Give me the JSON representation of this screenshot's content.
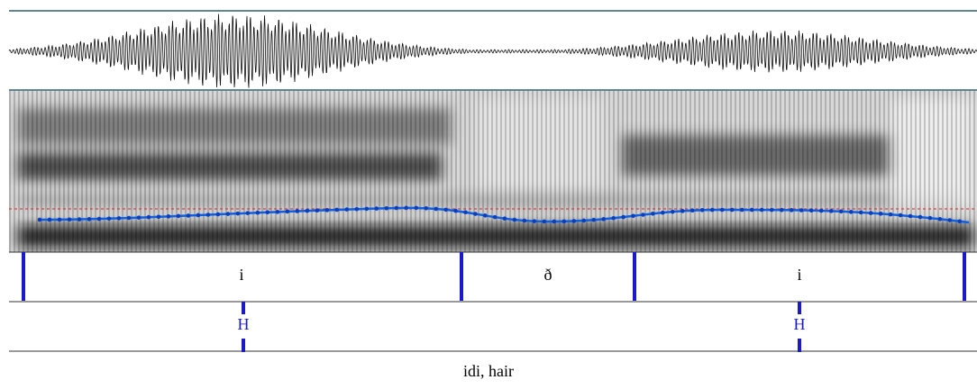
{
  "tiers": [
    {
      "intervals": [
        "i",
        "ð",
        "i"
      ]
    },
    {
      "points": [
        "H",
        "H"
      ]
    }
  ],
  "caption": "idi, hair"
}
